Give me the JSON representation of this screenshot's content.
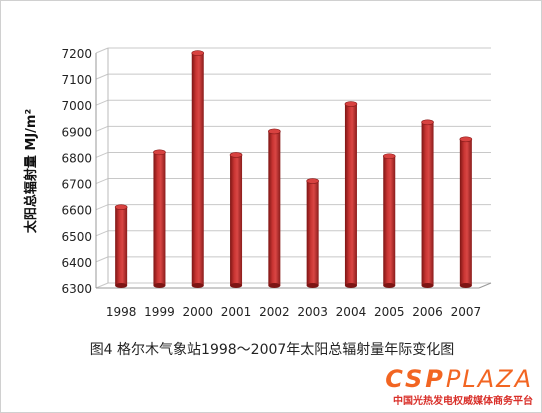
{
  "caption": "图4 格尔木气象站1998～2007年太阳总辐射量年际变化图",
  "logo": {
    "brand": "CSPPLAZA",
    "tagline": "中国光热发电权威媒体商务平台"
  },
  "colors": {
    "bar": "#b52a28",
    "bar_top": "#d84240",
    "grid": "#c8c8c8"
  },
  "chart_data": {
    "type": "bar",
    "title": "",
    "xlabel": "",
    "ylabel": "太阳总辐射量 MJ/m²",
    "ylim": [
      6300,
      7200
    ],
    "yticks": [
      6300,
      6400,
      6500,
      6600,
      6700,
      6800,
      6900,
      7000,
      7100,
      7200
    ],
    "categories": [
      "1998",
      "1999",
      "2000",
      "2001",
      "2002",
      "2003",
      "2004",
      "2005",
      "2006",
      "2007"
    ],
    "values": [
      6600,
      6810,
      7190,
      6800,
      6890,
      6700,
      6995,
      6795,
      6925,
      6860
    ],
    "grid": true,
    "legend": "none"
  }
}
